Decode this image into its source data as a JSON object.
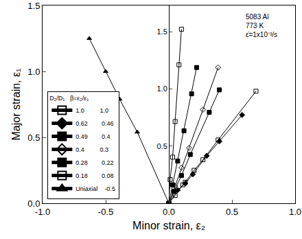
{
  "chart_data": {
    "type": "scatter",
    "annotation": [
      "5083 Al",
      "773 K",
      "ε̇=1x10⁻³/s"
    ],
    "x_label": "Minor strain, ε₂",
    "y_label": "Major strain, ε₁",
    "xlim": [
      -1,
      1
    ],
    "xticks": [
      {
        "value": -1,
        "label": "-1.0"
      },
      {
        "value": -0.5,
        "label": "-0.5"
      },
      {
        "value": 0,
        "label": "0.0"
      },
      {
        "value": 0.5,
        "label": "0.5"
      },
      {
        "value": 1,
        "label": "1.0"
      }
    ],
    "ylim": [
      0,
      1.5
    ],
    "yticks": [
      {
        "value": 0,
        "label": "0.0"
      },
      {
        "value": 0.5,
        "label": "0.5"
      },
      {
        "value": 1,
        "label": "1.0"
      },
      {
        "value": 1.5,
        "label": "1.5"
      }
    ],
    "y2lim": [
      0,
      1.73
    ],
    "y2ticks": [
      {
        "value": 0.5,
        "label": "0.5"
      },
      {
        "value": 1,
        "label": "1.0"
      },
      {
        "value": 1.5,
        "label": "1.5"
      }
    ],
    "grid": false,
    "legend": "lower left",
    "legend_title": [
      "D₂/D₁",
      "β=ε₂/ε₁"
    ],
    "series": [
      {
        "name": "1.0",
        "beta": "1.0",
        "marker": "square-open",
        "color": "#000000",
        "x": [
          0,
          0.05,
          0.11,
          0.13,
          0.2,
          0.27,
          0.39,
          0.69
        ],
        "values": [
          0,
          0.06,
          0.14,
          0.16,
          0.25,
          0.33,
          0.48,
          0.85
        ]
      },
      {
        "name": "0.62",
        "beta": "0.46",
        "marker": "diamond",
        "color": "#000000",
        "x": [
          0,
          0.07,
          0.13,
          0.19,
          0.3,
          0.4,
          0.58
        ],
        "values": [
          0,
          0.1,
          0.15,
          0.22,
          0.36,
          0.47,
          0.67
        ]
      },
      {
        "name": "0.49",
        "beta": "0.4",
        "marker": "square",
        "color": "#000000",
        "x": [
          0,
          0.04,
          0.1,
          0.17,
          0.32,
          0.4
        ],
        "values": [
          0,
          0.09,
          0.21,
          0.37,
          0.69,
          0.86
        ]
      },
      {
        "name": "0.4",
        "beta": "0.3",
        "marker": "diamond-open",
        "color": "#000000",
        "x": [
          0,
          0.05,
          0.1,
          0.16,
          0.27,
          0.39
        ],
        "values": [
          0,
          0.13,
          0.27,
          0.42,
          0.71,
          1.03
        ]
      },
      {
        "name": "0.28",
        "beta": "0.22",
        "marker": "square",
        "color": "#000000",
        "x": [
          0,
          0.03,
          0.07,
          0.12,
          0.18,
          0.22
        ],
        "values": [
          0,
          0.14,
          0.32,
          0.55,
          0.83,
          1.03
        ]
      },
      {
        "name": "0.18",
        "beta": "0.08",
        "marker": "square-open",
        "color": "#000000",
        "x": [
          0,
          0.01,
          0.03,
          0.05,
          0.08,
          0.1
        ],
        "values": [
          0,
          0.18,
          0.35,
          0.62,
          1.05,
          1.32
        ]
      },
      {
        "name": "Uniaxial",
        "beta": "-0.5",
        "marker": "triangle-up",
        "color": "#000000",
        "x": [
          0,
          -0.25,
          -0.39,
          -0.5,
          -0.63
        ],
        "values": [
          0,
          0.54,
          0.79,
          1.0,
          1.25
        ]
      }
    ]
  }
}
